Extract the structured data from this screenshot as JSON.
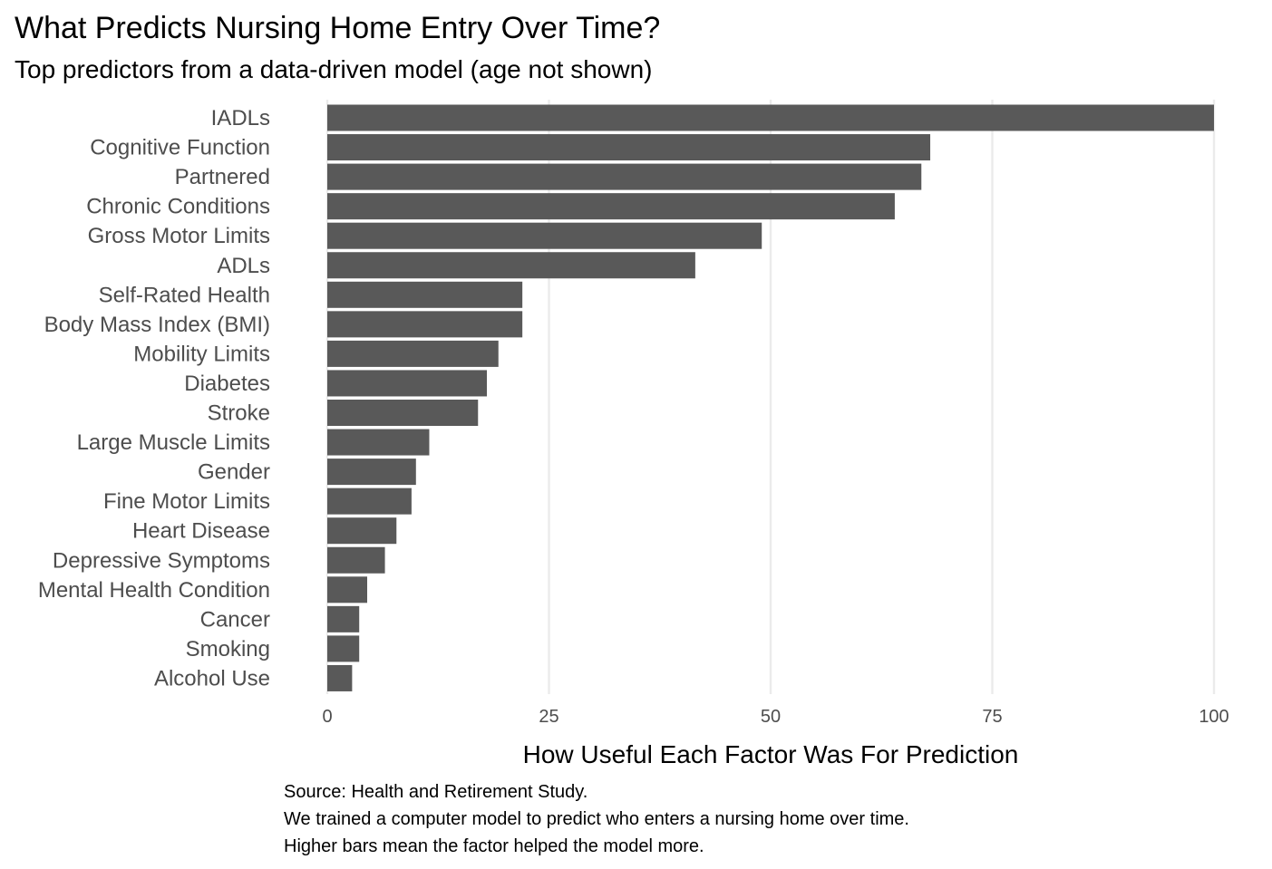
{
  "chart_data": {
    "type": "bar",
    "orientation": "horizontal",
    "title": "What Predicts Nursing Home Entry Over Time?",
    "subtitle": "Top predictors from a data-driven model (age not shown)",
    "xlabel": "How Useful Each Factor Was For Prediction",
    "ylabel": "",
    "xlim": [
      0,
      100
    ],
    "xticks": [
      0,
      25,
      50,
      75,
      100
    ],
    "grid": "vertical major gridlines",
    "legend": "none",
    "colors": {
      "bar": "#595959",
      "grid": "#ebebeb",
      "label": "#4d4d4d"
    },
    "categories": [
      "IADLs",
      "Cognitive Function",
      "Partnered",
      "Chronic Conditions",
      "Gross Motor Limits",
      "ADLs",
      "Self-Rated Health",
      "Body Mass Index (BMI)",
      "Mobility Limits",
      "Diabetes",
      "Stroke",
      "Large Muscle Limits",
      "Gender",
      "Fine Motor Limits",
      "Heart Disease",
      "Depressive Symptoms",
      "Mental Health Condition",
      "Cancer",
      "Smoking",
      "Alcohol Use"
    ],
    "values": [
      100,
      68,
      67,
      64,
      49,
      41.5,
      22,
      22,
      19.3,
      18,
      17,
      11.5,
      10,
      9.5,
      7.8,
      6.5,
      4.5,
      3.6,
      3.6,
      2.8
    ],
    "caption": [
      "Source: Health and Retirement Study.",
      "We trained a computer model to predict who enters a nursing home over time.",
      "Higher bars mean the factor helped the model more."
    ]
  }
}
